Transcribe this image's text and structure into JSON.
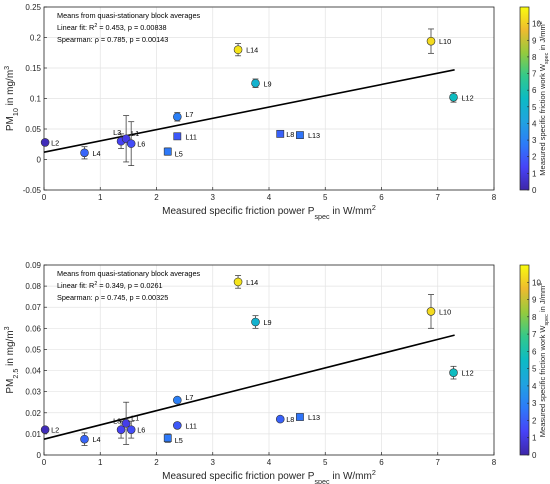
{
  "chart_data": [
    {
      "type": "scatter",
      "xlabel_main": "Measured specific friction power P",
      "xlabel_sub": "spec",
      "xlabel_tail": " in W/mm",
      "xlabel_sup": "2",
      "ylabel_main": "PM",
      "ylabel_sub": "10",
      "ylabel_tail": " in mg/m",
      "ylabel_sup": "3",
      "xlim": [
        0,
        8
      ],
      "ylim": [
        -0.05,
        0.25
      ],
      "xticks": [
        "0",
        "1",
        "2",
        "3",
        "4",
        "5",
        "6",
        "7",
        "8"
      ],
      "yticks": [
        "-0.05",
        "0",
        "0.05",
        "0.1",
        "0.15",
        "0.2",
        "0.25"
      ],
      "annotation": {
        "line1": "Means from quasi-stationary block averages",
        "line2_prefix": "Linear fit: R",
        "line2_sup": "2",
        "line2_suffix": " = 0.453, p = 0.00838",
        "line3": "Spearman: ρ = 0.785, p = 0.00143"
      },
      "colorbar": {
        "label_main": "Measured specific friction work W",
        "label_sub": "spec",
        "label_tail": " in J/mm",
        "label_sup": "2",
        "range": [
          0,
          11
        ],
        "ticks": [
          "0",
          "1",
          "2",
          "3",
          "4",
          "5",
          "6",
          "7",
          "8",
          "9",
          "10"
        ],
        "colormap": "parula"
      },
      "fit": {
        "x0": 0,
        "y0": 0.012,
        "x1": 7.3,
        "y1": 0.147
      },
      "points": [
        {
          "label": "L2",
          "x": 0.02,
          "y": 0.028,
          "err": 0,
          "c": 0.3,
          "marker": "circle"
        },
        {
          "label": "L4",
          "x": 0.72,
          "y": 0.011,
          "err": 0.01,
          "c": 2.2,
          "marker": "circle"
        },
        {
          "label": "L3",
          "x": 1.37,
          "y": 0.03,
          "err": 0.012,
          "c": 1.3,
          "marker": "circle"
        },
        {
          "label": "L1",
          "x": 1.46,
          "y": 0.034,
          "err": 0.038,
          "c": 1.1,
          "marker": "circle"
        },
        {
          "label": "L6",
          "x": 1.55,
          "y": 0.026,
          "err": 0.036,
          "c": 1.6,
          "marker": "circle"
        },
        {
          "label": "L5",
          "x": 2.2,
          "y": 0.013,
          "err": 0.006,
          "c": 2.7,
          "marker": "square"
        },
        {
          "label": "L7",
          "x": 2.37,
          "y": 0.07,
          "err": 0.007,
          "c": 2.9,
          "marker": "circle"
        },
        {
          "label": "L11",
          "x": 2.37,
          "y": 0.038,
          "err": 0,
          "c": 1.9,
          "marker": "square"
        },
        {
          "label": "L14",
          "x": 3.45,
          "y": 0.18,
          "err": 0.01,
          "c": 10.5,
          "marker": "circle"
        },
        {
          "label": "L9",
          "x": 3.76,
          "y": 0.125,
          "err": 0.007,
          "c": 5.0,
          "marker": "circle"
        },
        {
          "label": "L8",
          "x": 4.2,
          "y": 0.042,
          "err": 0,
          "c": 2.1,
          "marker": "square"
        },
        {
          "label": "L13",
          "x": 4.55,
          "y": 0.04,
          "err": 0,
          "c": 2.6,
          "marker": "square"
        },
        {
          "label": "L10",
          "x": 6.88,
          "y": 0.194,
          "err": 0.02,
          "c": 10.3,
          "marker": "circle"
        },
        {
          "label": "L12",
          "x": 7.28,
          "y": 0.102,
          "err": 0.008,
          "c": 5.6,
          "marker": "circle"
        }
      ]
    },
    {
      "type": "scatter",
      "xlabel_main": "Measured specific friction power P",
      "xlabel_sub": "spec",
      "xlabel_tail": " in W/mm",
      "xlabel_sup": "2",
      "ylabel_main": "PM",
      "ylabel_sub": "2.5",
      "ylabel_tail": " in mg/m",
      "ylabel_sup": "3",
      "xlim": [
        0,
        8
      ],
      "ylim": [
        0,
        0.09
      ],
      "xticks": [
        "0",
        "1",
        "2",
        "3",
        "4",
        "5",
        "6",
        "7",
        "8"
      ],
      "yticks": [
        "0",
        "0.01",
        "0.02",
        "0.03",
        "0.04",
        "0.05",
        "0.06",
        "0.07",
        "0.08",
        "0.09"
      ],
      "annotation": {
        "line1": "Means from quasi-stationary block averages",
        "line2_prefix": "Linear fit: R",
        "line2_sup": "2",
        "line2_suffix": " = 0.349, p = 0.0261",
        "line3": "Spearman: ρ = 0.745, p = 0.00325"
      },
      "colorbar": {
        "label_main": "Measured specific friction work W",
        "label_sub": "spec",
        "label_tail": " in J/mm",
        "label_sup": "2",
        "range": [
          0,
          11
        ],
        "ticks": [
          "0",
          "1",
          "2",
          "3",
          "4",
          "5",
          "6",
          "7",
          "8",
          "9",
          "10"
        ],
        "colormap": "parula"
      },
      "fit": {
        "x0": 0,
        "y0": 0.0075,
        "x1": 7.3,
        "y1": 0.0568
      },
      "points": [
        {
          "label": "L2",
          "x": 0.02,
          "y": 0.012,
          "err": 0,
          "c": 0.3,
          "marker": "circle"
        },
        {
          "label": "L4",
          "x": 0.72,
          "y": 0.0075,
          "err": 0.003,
          "c": 2.2,
          "marker": "circle"
        },
        {
          "label": "L3",
          "x": 1.37,
          "y": 0.012,
          "err": 0.004,
          "c": 1.3,
          "marker": "circle"
        },
        {
          "label": "L1",
          "x": 1.46,
          "y": 0.015,
          "err": 0.01,
          "c": 1.1,
          "marker": "circle"
        },
        {
          "label": "L6",
          "x": 1.55,
          "y": 0.012,
          "err": 0.004,
          "c": 1.6,
          "marker": "circle"
        },
        {
          "label": "L5",
          "x": 2.2,
          "y": 0.008,
          "err": 0.002,
          "c": 2.7,
          "marker": "square"
        },
        {
          "label": "L7",
          "x": 2.37,
          "y": 0.026,
          "err": 0.001,
          "c": 2.9,
          "marker": "circle"
        },
        {
          "label": "L11",
          "x": 2.37,
          "y": 0.014,
          "err": 0,
          "c": 1.9,
          "marker": "circle"
        },
        {
          "label": "L14",
          "x": 3.45,
          "y": 0.082,
          "err": 0.003,
          "c": 10.5,
          "marker": "circle"
        },
        {
          "label": "L9",
          "x": 3.76,
          "y": 0.063,
          "err": 0.003,
          "c": 5.0,
          "marker": "circle"
        },
        {
          "label": "L8",
          "x": 4.2,
          "y": 0.017,
          "err": 0,
          "c": 2.1,
          "marker": "circle"
        },
        {
          "label": "L13",
          "x": 4.55,
          "y": 0.018,
          "err": 0,
          "c": 2.6,
          "marker": "square"
        },
        {
          "label": "L10",
          "x": 6.88,
          "y": 0.068,
          "err": 0.008,
          "c": 10.3,
          "marker": "circle"
        },
        {
          "label": "L12",
          "x": 7.28,
          "y": 0.039,
          "err": 0.003,
          "c": 5.6,
          "marker": "circle"
        }
      ]
    }
  ]
}
